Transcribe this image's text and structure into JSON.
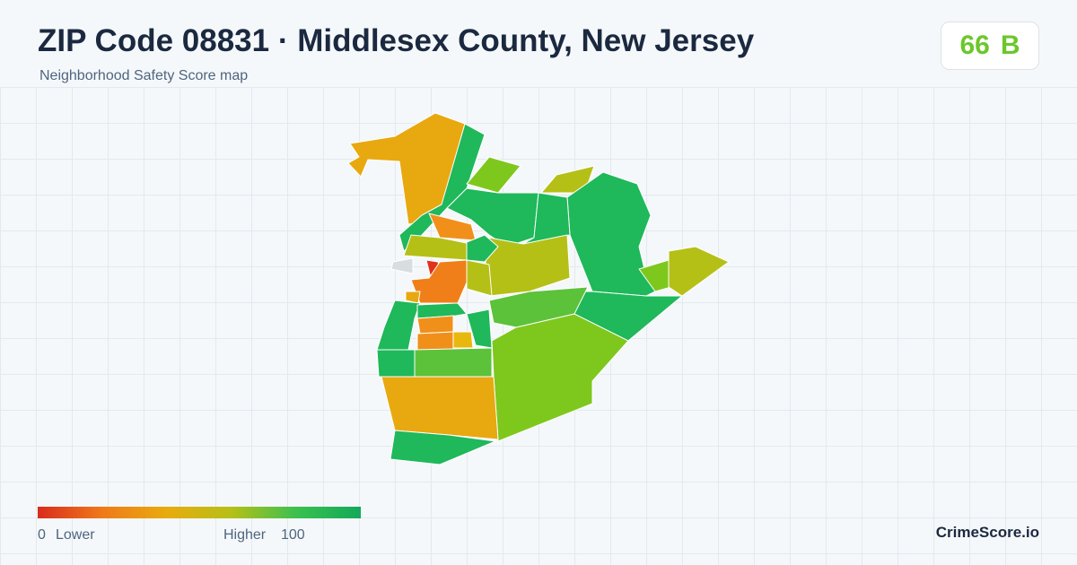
{
  "header": {
    "title": "ZIP Code 08831 · Middlesex County, New Jersey",
    "subtitle": "Neighborhood Safety Score map"
  },
  "score": {
    "value": 66,
    "grade": "B"
  },
  "legend": {
    "min": 0,
    "min_label": "Lower",
    "max_label": "Higher",
    "max": 100
  },
  "brand": "CrimeScore.io"
}
